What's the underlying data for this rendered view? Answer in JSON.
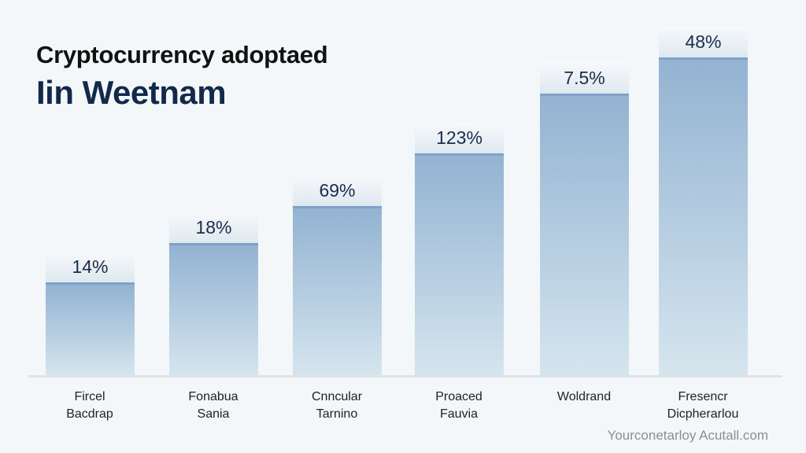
{
  "chart_data": {
    "type": "bar",
    "title": "Cryptocurrency adoptaed",
    "subtitle": "Iin Weetnam",
    "categories": [
      "Fircel Bacdrap",
      "Fonabua Sania",
      "Cnncular Tarnino",
      "Proaced Fauvia",
      "Woldrand",
      "Fresencr Dicpherarlou"
    ],
    "category_lines": [
      [
        "Fircel",
        "Bacdrap"
      ],
      [
        "Fonabua",
        "Sania"
      ],
      [
        "Cnncular",
        "Tarnino"
      ],
      [
        "Proaced",
        "Fauvia"
      ],
      [
        "Woldrand",
        ""
      ],
      [
        "Fresencr",
        "Dicpherarlou"
      ]
    ],
    "value_labels": [
      "14%",
      "18%",
      "69%",
      "123%",
      "7.5%",
      "48%"
    ],
    "values": [
      14,
      18,
      69,
      123,
      7.5,
      48
    ],
    "bar_level_pct": [
      28,
      40,
      51,
      67,
      85,
      96
    ],
    "xlabel": "",
    "ylabel": "",
    "grid": false,
    "legend": "none",
    "colors": {
      "bar_top": "#93b3d2",
      "bar_bottom": "#d5e5ee",
      "label_text": "#1b2c4a"
    }
  },
  "source": "Yourconetarloy Acutall.com"
}
